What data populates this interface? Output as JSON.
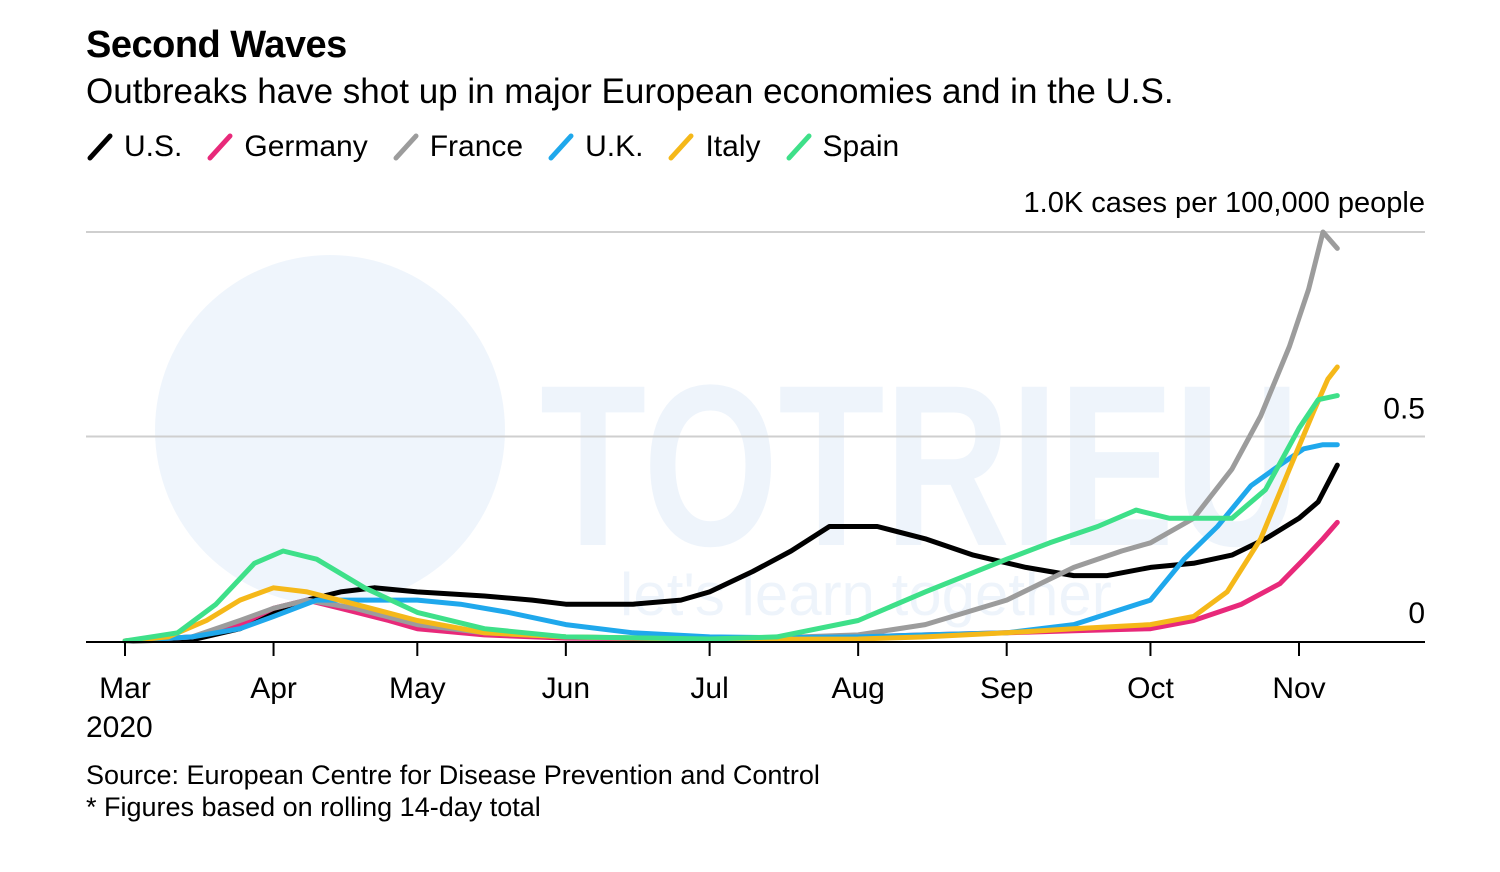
{
  "header": {
    "title": "Second Waves",
    "subtitle": "Outbreaks have shot up in major European economies and in the U.S."
  },
  "footer": {
    "source": "Source: European Centre for Disease Prevention and Control",
    "note": "* Figures based on rolling 14-day total"
  },
  "watermark": {
    "text": "TOTRIEU",
    "tagline": "let's learn together"
  },
  "chart_data": {
    "type": "line",
    "title": "Second Waves",
    "subtitle": "Outbreaks have shot up in major European economies and in the U.S.",
    "ylabel": "1.0K cases per 100,000 people",
    "ylim": [
      0,
      1.0
    ],
    "y_ticks": [
      {
        "value": 0,
        "label": "0"
      },
      {
        "value": 0.5,
        "label": "0.5"
      },
      {
        "value": 1.0,
        "label": "1.0K cases per 100,000 people"
      }
    ],
    "x_ticks": [
      {
        "date": "2020-03-01",
        "label": "Mar",
        "sublabel": "2020"
      },
      {
        "date": "2020-04-01",
        "label": "Apr"
      },
      {
        "date": "2020-05-01",
        "label": "May"
      },
      {
        "date": "2020-06-01",
        "label": "Jun"
      },
      {
        "date": "2020-07-01",
        "label": "Jul"
      },
      {
        "date": "2020-08-01",
        "label": "Aug"
      },
      {
        "date": "2020-09-01",
        "label": "Sep"
      },
      {
        "date": "2020-10-01",
        "label": "Oct"
      },
      {
        "date": "2020-11-01",
        "label": "Nov"
      }
    ],
    "x_range": [
      "2020-02-23",
      "2020-11-27"
    ],
    "grid": true,
    "legend_position": "top-left",
    "series": [
      {
        "name": "U.S.",
        "color": "#000000",
        "points": [
          [
            "2020-03-01",
            0.0
          ],
          [
            "2020-03-15",
            0.003
          ],
          [
            "2020-03-25",
            0.03
          ],
          [
            "2020-04-01",
            0.07
          ],
          [
            "2020-04-08",
            0.1
          ],
          [
            "2020-04-15",
            0.12
          ],
          [
            "2020-04-22",
            0.13
          ],
          [
            "2020-05-01",
            0.12
          ],
          [
            "2020-05-15",
            0.11
          ],
          [
            "2020-05-25",
            0.1
          ],
          [
            "2020-06-01",
            0.09
          ],
          [
            "2020-06-15",
            0.09
          ],
          [
            "2020-06-25",
            0.1
          ],
          [
            "2020-07-01",
            0.12
          ],
          [
            "2020-07-10",
            0.17
          ],
          [
            "2020-07-18",
            0.22
          ],
          [
            "2020-07-26",
            0.28
          ],
          [
            "2020-08-05",
            0.28
          ],
          [
            "2020-08-15",
            0.25
          ],
          [
            "2020-08-25",
            0.21
          ],
          [
            "2020-09-05",
            0.18
          ],
          [
            "2020-09-15",
            0.16
          ],
          [
            "2020-09-22",
            0.16
          ],
          [
            "2020-10-01",
            0.18
          ],
          [
            "2020-10-10",
            0.19
          ],
          [
            "2020-10-18",
            0.21
          ],
          [
            "2020-10-25",
            0.25
          ],
          [
            "2020-11-01",
            0.3
          ],
          [
            "2020-11-05",
            0.34
          ],
          [
            "2020-11-09",
            0.43
          ]
        ]
      },
      {
        "name": "Germany",
        "color": "#e8297a",
        "points": [
          [
            "2020-03-01",
            0.0
          ],
          [
            "2020-03-15",
            0.01
          ],
          [
            "2020-03-25",
            0.04
          ],
          [
            "2020-04-01",
            0.08
          ],
          [
            "2020-04-08",
            0.1
          ],
          [
            "2020-04-15",
            0.08
          ],
          [
            "2020-04-25",
            0.05
          ],
          [
            "2020-05-01",
            0.03
          ],
          [
            "2020-05-15",
            0.015
          ],
          [
            "2020-06-01",
            0.007
          ],
          [
            "2020-07-01",
            0.005
          ],
          [
            "2020-08-01",
            0.01
          ],
          [
            "2020-08-15",
            0.015
          ],
          [
            "2020-09-01",
            0.02
          ],
          [
            "2020-09-15",
            0.025
          ],
          [
            "2020-10-01",
            0.03
          ],
          [
            "2020-10-10",
            0.05
          ],
          [
            "2020-10-20",
            0.09
          ],
          [
            "2020-10-28",
            0.14
          ],
          [
            "2020-11-02",
            0.2
          ],
          [
            "2020-11-06",
            0.25
          ],
          [
            "2020-11-09",
            0.29
          ]
        ]
      },
      {
        "name": "France",
        "color": "#9c9c9c",
        "points": [
          [
            "2020-03-01",
            0.0
          ],
          [
            "2020-03-15",
            0.01
          ],
          [
            "2020-03-25",
            0.05
          ],
          [
            "2020-04-01",
            0.08
          ],
          [
            "2020-04-08",
            0.1
          ],
          [
            "2020-04-18",
            0.08
          ],
          [
            "2020-05-01",
            0.04
          ],
          [
            "2020-05-15",
            0.02
          ],
          [
            "2020-06-01",
            0.01
          ],
          [
            "2020-07-01",
            0.005
          ],
          [
            "2020-07-15",
            0.008
          ],
          [
            "2020-08-01",
            0.015
          ],
          [
            "2020-08-15",
            0.04
          ],
          [
            "2020-09-01",
            0.1
          ],
          [
            "2020-09-15",
            0.18
          ],
          [
            "2020-09-25",
            0.22
          ],
          [
            "2020-10-01",
            0.24
          ],
          [
            "2020-10-10",
            0.3
          ],
          [
            "2020-10-18",
            0.42
          ],
          [
            "2020-10-24",
            0.55
          ],
          [
            "2020-10-30",
            0.72
          ],
          [
            "2020-11-03",
            0.86
          ],
          [
            "2020-11-06",
            1.0
          ],
          [
            "2020-11-09",
            0.96
          ]
        ]
      },
      {
        "name": "U.K.",
        "color": "#1fa8ec",
        "points": [
          [
            "2020-03-01",
            0.0
          ],
          [
            "2020-03-15",
            0.01
          ],
          [
            "2020-03-25",
            0.03
          ],
          [
            "2020-04-01",
            0.06
          ],
          [
            "2020-04-10",
            0.1
          ],
          [
            "2020-04-20",
            0.1
          ],
          [
            "2020-05-01",
            0.1
          ],
          [
            "2020-05-10",
            0.09
          ],
          [
            "2020-05-20",
            0.07
          ],
          [
            "2020-06-01",
            0.04
          ],
          [
            "2020-06-15",
            0.02
          ],
          [
            "2020-07-01",
            0.01
          ],
          [
            "2020-07-15",
            0.008
          ],
          [
            "2020-08-01",
            0.01
          ],
          [
            "2020-08-15",
            0.015
          ],
          [
            "2020-09-01",
            0.02
          ],
          [
            "2020-09-15",
            0.04
          ],
          [
            "2020-10-01",
            0.1
          ],
          [
            "2020-10-08",
            0.2
          ],
          [
            "2020-10-15",
            0.28
          ],
          [
            "2020-10-22",
            0.38
          ],
          [
            "2020-10-28",
            0.43
          ],
          [
            "2020-11-02",
            0.47
          ],
          [
            "2020-11-06",
            0.48
          ],
          [
            "2020-11-09",
            0.48
          ]
        ]
      },
      {
        "name": "Italy",
        "color": "#f5b819",
        "points": [
          [
            "2020-03-01",
            0.0
          ],
          [
            "2020-03-10",
            0.01
          ],
          [
            "2020-03-18",
            0.05
          ],
          [
            "2020-03-25",
            0.1
          ],
          [
            "2020-04-01",
            0.13
          ],
          [
            "2020-04-08",
            0.12
          ],
          [
            "2020-04-18",
            0.09
          ],
          [
            "2020-05-01",
            0.05
          ],
          [
            "2020-05-15",
            0.02
          ],
          [
            "2020-06-01",
            0.01
          ],
          [
            "2020-07-01",
            0.004
          ],
          [
            "2020-08-01",
            0.005
          ],
          [
            "2020-08-15",
            0.01
          ],
          [
            "2020-09-01",
            0.02
          ],
          [
            "2020-09-15",
            0.03
          ],
          [
            "2020-10-01",
            0.04
          ],
          [
            "2020-10-10",
            0.06
          ],
          [
            "2020-10-17",
            0.12
          ],
          [
            "2020-10-24",
            0.25
          ],
          [
            "2020-10-30",
            0.42
          ],
          [
            "2020-11-04",
            0.56
          ],
          [
            "2020-11-07",
            0.64
          ],
          [
            "2020-11-09",
            0.67
          ]
        ]
      },
      {
        "name": "Spain",
        "color": "#3ee089",
        "points": [
          [
            "2020-03-01",
            0.0
          ],
          [
            "2020-03-12",
            0.02
          ],
          [
            "2020-03-20",
            0.09
          ],
          [
            "2020-03-28",
            0.19
          ],
          [
            "2020-04-03",
            0.22
          ],
          [
            "2020-04-10",
            0.2
          ],
          [
            "2020-04-20",
            0.13
          ],
          [
            "2020-05-01",
            0.07
          ],
          [
            "2020-05-15",
            0.03
          ],
          [
            "2020-06-01",
            0.01
          ],
          [
            "2020-07-01",
            0.005
          ],
          [
            "2020-07-15",
            0.01
          ],
          [
            "2020-08-01",
            0.05
          ],
          [
            "2020-08-15",
            0.12
          ],
          [
            "2020-09-01",
            0.2
          ],
          [
            "2020-09-10",
            0.24
          ],
          [
            "2020-09-20",
            0.28
          ],
          [
            "2020-09-28",
            0.32
          ],
          [
            "2020-10-05",
            0.3
          ],
          [
            "2020-10-12",
            0.3
          ],
          [
            "2020-10-18",
            0.3
          ],
          [
            "2020-10-25",
            0.37
          ],
          [
            "2020-11-01",
            0.52
          ],
          [
            "2020-11-05",
            0.59
          ],
          [
            "2020-11-09",
            0.6
          ]
        ]
      }
    ]
  }
}
